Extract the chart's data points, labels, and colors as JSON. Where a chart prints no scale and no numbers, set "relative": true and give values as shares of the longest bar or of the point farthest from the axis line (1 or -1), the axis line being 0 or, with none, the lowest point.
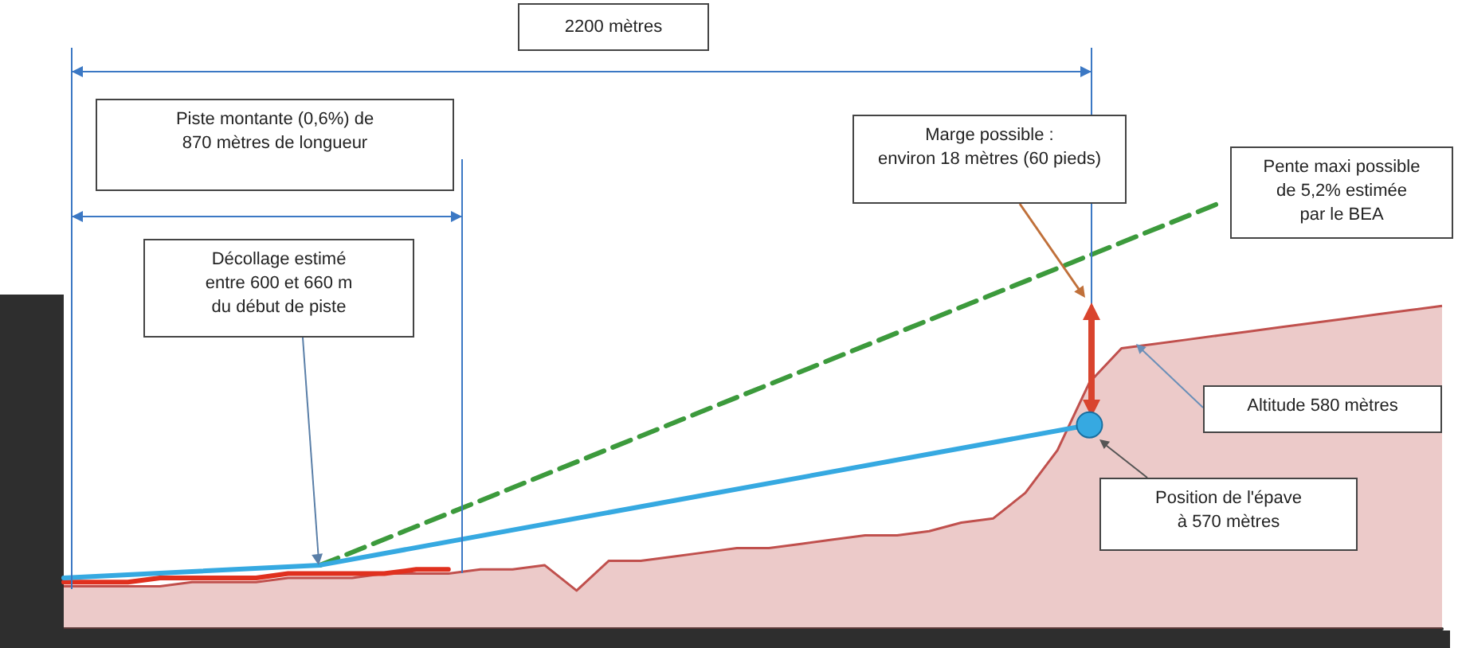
{
  "chart_data": {
    "type": "line",
    "relative": true,
    "grid": false,
    "marker": "none",
    "categories": [
      null,
      null,
      null,
      null,
      null,
      null,
      null,
      null,
      null,
      null,
      null,
      null,
      null,
      null,
      null,
      null,
      null,
      null,
      null,
      null,
      null,
      null,
      null,
      null,
      null,
      null,
      null,
      null,
      null,
      null,
      null,
      null,
      null,
      null,
      null,
      null,
      null,
      null,
      null,
      null,
      null,
      null,
      null,
      null
    ],
    "series": [
      {
        "type": "area",
        "color": "#c0504d",
        "values": [
          0.1,
          0.1,
          0.1,
          0.1,
          0.11,
          0.11,
          0.11,
          0.12,
          0.12,
          0.12,
          0.13,
          0.13,
          0.13,
          0.14,
          0.14,
          0.15,
          0.09,
          0.16,
          0.16,
          0.17,
          0.18,
          0.19,
          0.19,
          0.2,
          0.21,
          0.22,
          0.22,
          0.23,
          0.25,
          0.26,
          0.32,
          0.42,
          0.58,
          0.66,
          0.67,
          0.68,
          0.69,
          0.7,
          0.71,
          0.72,
          0.73,
          0.74,
          0.75,
          0.76
        ]
      },
      {
        "color": "#e0301e",
        "values": [
          0.11,
          0.11,
          0.11,
          0.12,
          0.12,
          0.12,
          0.12,
          0.13,
          0.13,
          0.13,
          0.13,
          0.14,
          0.14,
          null,
          null,
          null,
          null,
          null,
          null,
          null,
          null,
          null,
          null,
          null,
          null,
          null,
          null,
          null,
          null,
          null,
          null,
          null,
          null,
          null,
          null,
          null,
          null,
          null,
          null,
          null,
          null,
          null,
          null,
          null
        ]
      },
      {
        "color": "#3c9a3c",
        "line_style": "dashed",
        "values": [
          null,
          null,
          null,
          null,
          null,
          null,
          null,
          null,
          0.15,
          null,
          null,
          null,
          null,
          null,
          null,
          null,
          null,
          null,
          null,
          null,
          null,
          null,
          null,
          null,
          null,
          null,
          null,
          null,
          null,
          null,
          null,
          null,
          null,
          null,
          null,
          null,
          1.0,
          null,
          null,
          null,
          null,
          null,
          null,
          null
        ]
      },
      {
        "color": "#36a9e1",
        "values": [
          0.12,
          null,
          null,
          null,
          null,
          null,
          null,
          null,
          0.15,
          null,
          null,
          null,
          null,
          null,
          null,
          null,
          null,
          null,
          null,
          null,
          null,
          null,
          null,
          null,
          null,
          null,
          null,
          null,
          null,
          null,
          null,
          null,
          0.48,
          null,
          null,
          null,
          null,
          null,
          null,
          null,
          null,
          null,
          null,
          null
        ]
      }
    ],
    "annotations": [
      "2200 mètres",
      "Piste montante (0,6%) de\n870 mètres de longueur",
      "Décollage estimé\nentre 600 et 660 m\ndu début de piste",
      "Marge possible :\nenviron 18 mètres (60 pieds)",
      "Pente maxi possible\nde 5,2% estimée\npar le BEA",
      "Altitude 580 mètres",
      "Position de l'épave\nà 570 mètres"
    ]
  }
}
